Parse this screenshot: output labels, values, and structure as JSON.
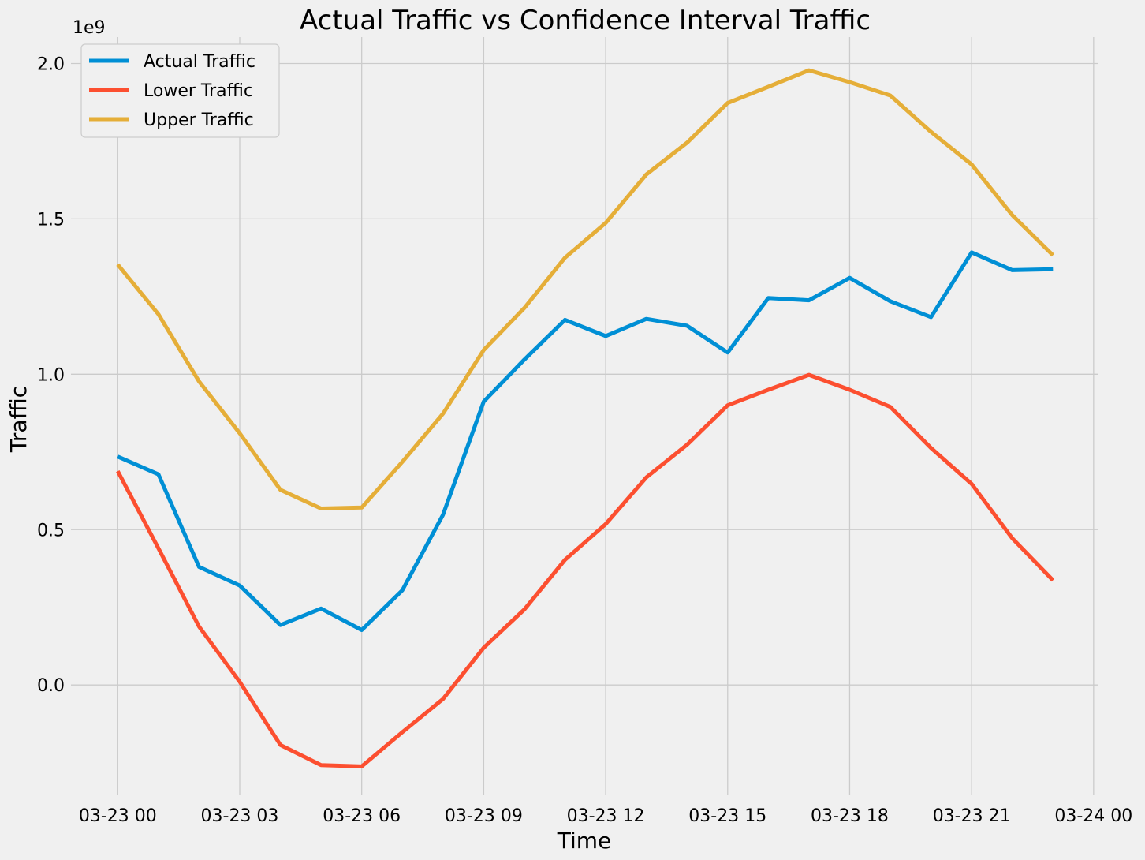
{
  "chart_data": {
    "type": "line",
    "title": "Actual Traffic vs Confidence Interval Traffic",
    "xlabel": "Time",
    "ylabel": "Traffic",
    "y_offset_label": "1e9",
    "x_tick_labels": [
      "03-23 00",
      "03-23 03",
      "03-23 06",
      "03-23 09",
      "03-23 12",
      "03-23 15",
      "03-23 18",
      "03-23 21",
      "03-24 00"
    ],
    "x_tick_hours": [
      0,
      3,
      6,
      9,
      12,
      15,
      18,
      21,
      24
    ],
    "y_tick_labels": [
      "0.0",
      "0.5",
      "1.0",
      "1.5",
      "2.0"
    ],
    "y_tick_values": [
      0,
      0.5,
      1.0,
      1.5,
      2.0
    ],
    "xlim": [
      -1.15,
      24.1
    ],
    "ylim": [
      -0.355,
      2.085
    ],
    "x": [
      0,
      1,
      2,
      3,
      4,
      5,
      6,
      7,
      8,
      9,
      10,
      11,
      12,
      13,
      14,
      15,
      16,
      17,
      18,
      19,
      20,
      21,
      22,
      23
    ],
    "series": [
      {
        "name": "Actual Traffic",
        "color": "#008fd5",
        "values": [
          0.735,
          0.678,
          0.38,
          0.32,
          0.193,
          0.246,
          0.177,
          0.305,
          0.548,
          0.912,
          1.047,
          1.175,
          1.123,
          1.178,
          1.156,
          1.07,
          1.245,
          1.238,
          1.31,
          1.235,
          1.184,
          1.392,
          1.335,
          1.338
        ]
      },
      {
        "name": "Lower Traffic",
        "color": "#fc4f30",
        "values": [
          0.688,
          0.44,
          0.188,
          0.01,
          -0.193,
          -0.258,
          -0.262,
          -0.152,
          -0.045,
          0.12,
          0.243,
          0.403,
          0.518,
          0.668,
          0.773,
          0.9,
          0.95,
          0.998,
          0.95,
          0.895,
          0.763,
          0.647,
          0.472,
          0.337
        ]
      },
      {
        "name": "Upper Traffic",
        "color": "#e5ae38",
        "values": [
          1.353,
          1.193,
          0.977,
          0.81,
          0.628,
          0.568,
          0.571,
          0.718,
          0.873,
          1.078,
          1.213,
          1.375,
          1.487,
          1.643,
          1.745,
          1.873,
          1.925,
          1.978,
          1.94,
          1.897,
          1.78,
          1.675,
          1.512,
          1.383
        ]
      }
    ],
    "legend_position": "top-left",
    "grid": true
  }
}
